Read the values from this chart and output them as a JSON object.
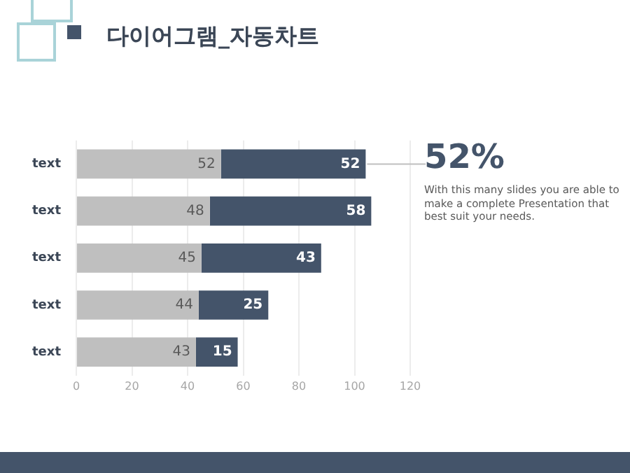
{
  "chart_data": {
    "type": "bar",
    "orientation": "horizontal",
    "stacked": true,
    "title": "다이어그램_자동차트",
    "categories": [
      "text",
      "text",
      "text",
      "text",
      "text"
    ],
    "series": [
      {
        "color": "#bfbfbf",
        "values": [
          52,
          48,
          45,
          44,
          43
        ]
      },
      {
        "color": "#44546a",
        "values": [
          52,
          58,
          43,
          25,
          15
        ]
      }
    ],
    "xlim": [
      0,
      120
    ],
    "xticks": [
      0,
      20,
      40,
      60,
      80,
      100,
      120
    ],
    "grid": "x",
    "legend": false,
    "data_labels": true,
    "annotations": [
      {
        "text": "52%",
        "x": 104,
        "y": "text"
      },
      "With this many slides you are able to make a complete Presentation that best suit your needs."
    ]
  }
}
